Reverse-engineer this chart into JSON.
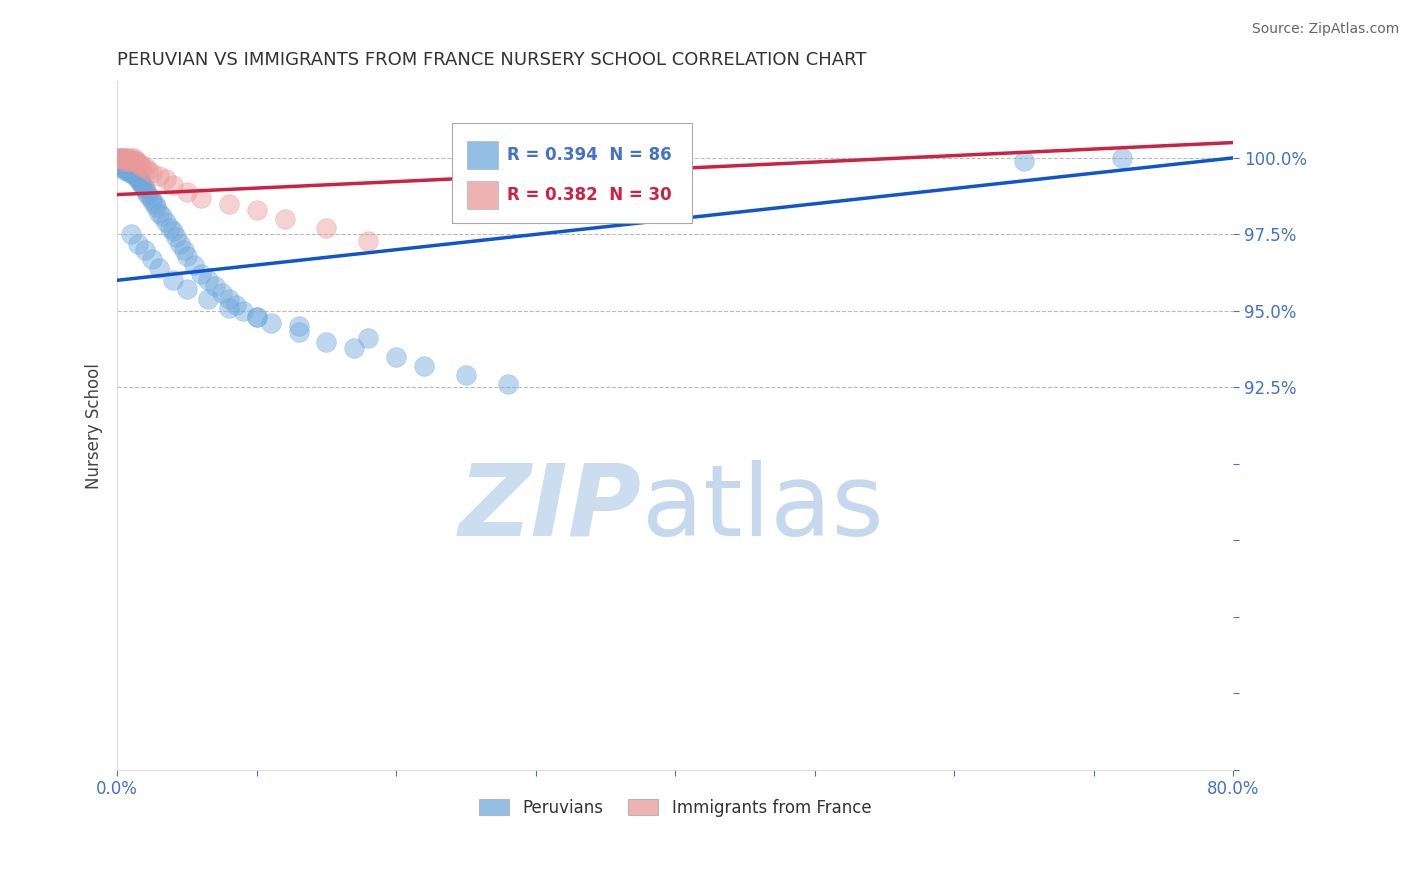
{
  "title": "PERUVIAN VS IMMIGRANTS FROM FRANCE NURSERY SCHOOL CORRELATION CHART",
  "source": "Source: ZipAtlas.com",
  "ylabel": "Nursery School",
  "xlim": [
    0.0,
    0.8
  ],
  "ylim": [
    0.8,
    1.025
  ],
  "xticks": [
    0.0,
    0.1,
    0.2,
    0.3,
    0.4,
    0.5,
    0.6,
    0.7,
    0.8
  ],
  "yticks": [
    0.8,
    0.825,
    0.85,
    0.875,
    0.9,
    0.925,
    0.95,
    0.975,
    1.0
  ],
  "grid_yticks": [
    1.0,
    0.975,
    0.95,
    0.925
  ],
  "blue_color": "#6fa8dc",
  "pink_color": "#ea9999",
  "blue_line_color": "#1155cc",
  "pink_line_color": "#cc2244",
  "tick_label_color": "#4472c4",
  "watermark_zip_color": "#ccddf0",
  "watermark_atlas_color": "#c5d8ee",
  "R_blue": 0.394,
  "N_blue": 86,
  "R_pink": 0.382,
  "N_pink": 30,
  "blue_scatter_x": [
    0.001,
    0.002,
    0.002,
    0.003,
    0.003,
    0.004,
    0.004,
    0.004,
    0.005,
    0.005,
    0.005,
    0.006,
    0.006,
    0.006,
    0.007,
    0.007,
    0.007,
    0.008,
    0.008,
    0.009,
    0.009,
    0.009,
    0.01,
    0.01,
    0.01,
    0.011,
    0.011,
    0.012,
    0.012,
    0.013,
    0.013,
    0.014,
    0.015,
    0.015,
    0.016,
    0.016,
    0.017,
    0.018,
    0.019,
    0.02,
    0.021,
    0.022,
    0.024,
    0.025,
    0.027,
    0.028,
    0.03,
    0.032,
    0.035,
    0.038,
    0.04,
    0.042,
    0.045,
    0.048,
    0.05,
    0.055,
    0.06,
    0.065,
    0.07,
    0.075,
    0.08,
    0.085,
    0.09,
    0.1,
    0.11,
    0.13,
    0.15,
    0.17,
    0.2,
    0.22,
    0.25,
    0.28,
    0.01,
    0.015,
    0.02,
    0.025,
    0.03,
    0.04,
    0.05,
    0.065,
    0.08,
    0.1,
    0.13,
    0.18,
    0.65,
    0.72
  ],
  "blue_scatter_y": [
    0.999,
    0.998,
    0.997,
    0.999,
    0.998,
    1.0,
    0.999,
    0.998,
    0.999,
    0.997,
    0.996,
    0.998,
    0.997,
    0.996,
    0.998,
    0.997,
    0.996,
    0.998,
    0.997,
    0.997,
    0.996,
    0.995,
    0.997,
    0.996,
    0.995,
    0.997,
    0.996,
    0.996,
    0.995,
    0.995,
    0.994,
    0.994,
    0.994,
    0.993,
    0.993,
    0.992,
    0.992,
    0.991,
    0.99,
    0.99,
    0.989,
    0.988,
    0.987,
    0.986,
    0.985,
    0.984,
    0.982,
    0.981,
    0.979,
    0.977,
    0.976,
    0.974,
    0.972,
    0.97,
    0.968,
    0.965,
    0.962,
    0.96,
    0.958,
    0.956,
    0.954,
    0.952,
    0.95,
    0.948,
    0.946,
    0.943,
    0.94,
    0.938,
    0.935,
    0.932,
    0.929,
    0.926,
    0.975,
    0.972,
    0.97,
    0.967,
    0.964,
    0.96,
    0.957,
    0.954,
    0.951,
    0.948,
    0.945,
    0.941,
    0.999,
    1.0
  ],
  "pink_scatter_x": [
    0.001,
    0.002,
    0.003,
    0.004,
    0.005,
    0.006,
    0.007,
    0.008,
    0.009,
    0.01,
    0.011,
    0.012,
    0.013,
    0.014,
    0.015,
    0.016,
    0.018,
    0.02,
    0.022,
    0.025,
    0.03,
    0.035,
    0.04,
    0.05,
    0.06,
    0.08,
    0.1,
    0.12,
    0.15,
    0.18
  ],
  "pink_scatter_y": [
    1.0,
    1.0,
    1.0,
    1.0,
    0.999,
    1.0,
    1.0,
    0.999,
    0.999,
    1.0,
    0.999,
    1.0,
    0.999,
    0.999,
    0.998,
    0.998,
    0.997,
    0.997,
    0.996,
    0.995,
    0.994,
    0.993,
    0.991,
    0.989,
    0.987,
    0.985,
    0.983,
    0.98,
    0.977,
    0.973
  ],
  "blue_trendline_x0": 0.0,
  "blue_trendline_y0": 0.96,
  "blue_trendline_x1": 0.8,
  "blue_trendline_y1": 1.0,
  "pink_trendline_x0": 0.0,
  "pink_trendline_y0": 0.988,
  "pink_trendline_x1": 0.8,
  "pink_trendline_y1": 1.005
}
